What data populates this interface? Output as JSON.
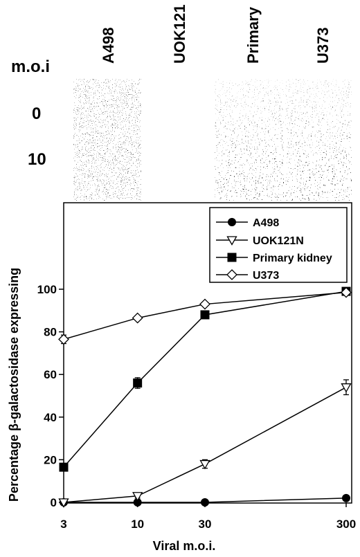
{
  "micrograph": {
    "moi_label": "m.o.i",
    "row_labels": [
      "0",
      "10"
    ],
    "column_labels": [
      "A498",
      "UOK121",
      "Primary",
      "U373"
    ]
  },
  "chart_data": {
    "type": "line",
    "x_scale": "log",
    "x": [
      3,
      10,
      30,
      300
    ],
    "x_ticks": [
      "3",
      "10",
      "30",
      "300"
    ],
    "y_ticks": [
      "0",
      "20",
      "40",
      "60",
      "80",
      "100"
    ],
    "ylim": [
      0,
      100
    ],
    "xlabel": "Viral m.o.i.",
    "ylabel": "Percentage β-galactosidase expressing",
    "legend_position": "top-right",
    "grid": false,
    "series": [
      {
        "name": "A498",
        "marker": "filled-circle",
        "values": [
          0,
          0,
          0,
          2
        ],
        "errors": [
          0,
          0,
          0,
          1
        ]
      },
      {
        "name": "UOK121N",
        "marker": "open-triangle-down",
        "values": [
          0,
          3,
          18,
          54
        ],
        "errors": [
          0,
          1,
          2,
          3.5
        ]
      },
      {
        "name": "Primary kidney",
        "marker": "filled-square",
        "values": [
          16.5,
          56,
          88,
          99
        ],
        "errors": [
          0.5,
          2.5,
          1,
          0.5
        ]
      },
      {
        "name": "U373",
        "marker": "open-diamond",
        "values": [
          76.5,
          86.5,
          93,
          98.5
        ],
        "errors": [
          2,
          1,
          1,
          0.5
        ]
      }
    ]
  }
}
